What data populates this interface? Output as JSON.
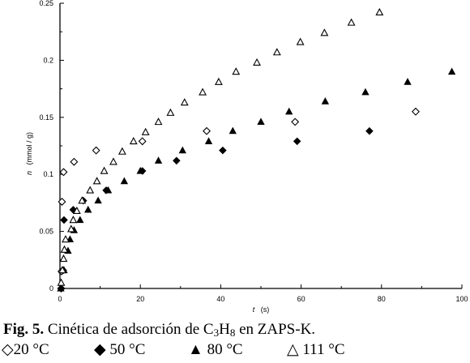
{
  "chart_data": {
    "type": "scatter",
    "xlabel_var": "t",
    "xlabel_unit": "(s)",
    "ylabel_var": "n",
    "ylabel_unit": "(mmol / g)",
    "xlim": [
      0,
      100
    ],
    "ylim": [
      0,
      0.25
    ],
    "x_ticks": [
      "0",
      "20",
      "40",
      "60",
      "80",
      "100"
    ],
    "y_ticks": [
      "0",
      "0.05",
      "0.1",
      "0.15",
      "0.2",
      "0.25"
    ],
    "grid": false,
    "series": [
      {
        "name": "20 °C",
        "marker": "open-diamond",
        "points": [
          [
            0.3,
            0.0
          ],
          [
            0.4,
            0.015
          ],
          [
            0.5,
            0.076
          ],
          [
            0.9,
            0.102
          ],
          [
            3.5,
            0.111
          ],
          [
            9,
            0.121
          ],
          [
            20.5,
            0.129
          ],
          [
            36.5,
            0.138
          ],
          [
            58.5,
            0.146
          ],
          [
            88.5,
            0.155
          ]
        ]
      },
      {
        "name": "50 °C",
        "marker": "filled-diamond",
        "points": [
          [
            0.3,
            0.0
          ],
          [
            0.8,
            0.016
          ],
          [
            1,
            0.06
          ],
          [
            3.3,
            0.069
          ],
          [
            5.8,
            0.077
          ],
          [
            11.5,
            0.086
          ],
          [
            20.5,
            0.103
          ],
          [
            29,
            0.112
          ],
          [
            40.5,
            0.121
          ],
          [
            59,
            0.129
          ],
          [
            77,
            0.138
          ]
        ]
      },
      {
        "name": "80 °C",
        "marker": "filled-triangle",
        "points": [
          [
            0.2,
            0.0
          ],
          [
            1,
            0.016
          ],
          [
            2,
            0.033
          ],
          [
            2.5,
            0.043
          ],
          [
            3.5,
            0.051
          ],
          [
            5,
            0.06
          ],
          [
            7,
            0.069
          ],
          [
            9.5,
            0.077
          ],
          [
            12,
            0.086
          ],
          [
            16,
            0.094
          ],
          [
            20,
            0.103
          ],
          [
            24.5,
            0.112
          ],
          [
            30.5,
            0.121
          ],
          [
            37,
            0.129
          ],
          [
            43,
            0.138
          ],
          [
            50,
            0.146
          ],
          [
            57,
            0.155
          ],
          [
            66,
            0.164
          ],
          [
            76,
            0.172
          ],
          [
            86.5,
            0.181
          ],
          [
            97.5,
            0.19
          ]
        ]
      },
      {
        "name": "111 °C",
        "marker": "open-triangle",
        "points": [
          [
            0.3,
            0.005
          ],
          [
            0.6,
            0.016
          ],
          [
            0.9,
            0.026
          ],
          [
            1.1,
            0.034
          ],
          [
            1.4,
            0.043
          ],
          [
            2.8,
            0.052
          ],
          [
            3.3,
            0.06
          ],
          [
            4.2,
            0.068
          ],
          [
            5.5,
            0.077
          ],
          [
            7.5,
            0.086
          ],
          [
            9.2,
            0.094
          ],
          [
            11,
            0.103
          ],
          [
            13.3,
            0.111
          ],
          [
            15.5,
            0.12
          ],
          [
            18.3,
            0.129
          ],
          [
            21.3,
            0.137
          ],
          [
            24.5,
            0.146
          ],
          [
            27.5,
            0.154
          ],
          [
            31,
            0.163
          ],
          [
            35.5,
            0.172
          ],
          [
            39.5,
            0.181
          ],
          [
            43.8,
            0.19
          ],
          [
            49,
            0.198
          ],
          [
            54,
            0.207
          ],
          [
            59.8,
            0.216
          ],
          [
            65.8,
            0.224
          ],
          [
            72.5,
            0.233
          ],
          [
            79.5,
            0.242
          ]
        ]
      }
    ]
  },
  "caption": {
    "label": "Fig. 5.",
    "text_before": " Cinética de adsorción de C",
    "sub1": "3",
    "text_mid": "H",
    "sub2": "8",
    "text_after": " en ZAPS-K."
  },
  "legend": [
    {
      "symbol": "◇",
      "label": "20 °C"
    },
    {
      "symbol": "◆",
      "label": "50 °C"
    },
    {
      "symbol": "▲",
      "label": "80 °C"
    },
    {
      "symbol": "△",
      "label": "111 °C"
    }
  ]
}
